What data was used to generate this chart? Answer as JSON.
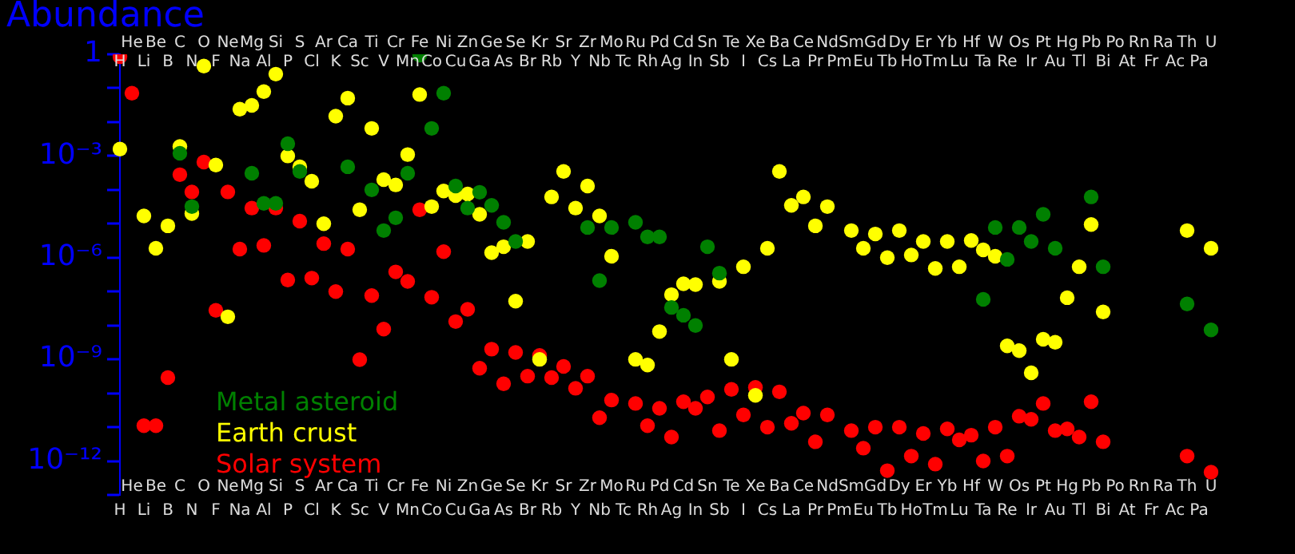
{
  "chart_data": {
    "type": "scatter",
    "title": "Abundance",
    "log": "y",
    "grid": false,
    "legend": "bottom left",
    "marker": "circle",
    "categories": [
      "H",
      "He",
      "Li",
      "Be",
      "B",
      "C",
      "N",
      "O",
      "F",
      "Ne",
      "Na",
      "Mg",
      "Al",
      "Si",
      "P",
      "S",
      "Cl",
      "Ar",
      "K",
      "Ca",
      "Sc",
      "Ti",
      "V",
      "Cr",
      "Mn",
      "Fe",
      "Co",
      "Ni",
      "Cu",
      "Zn",
      "Ga",
      "Ge",
      "As",
      "Se",
      "Br",
      "Kr",
      "Rb",
      "Sr",
      "Y",
      "Zr",
      "Nb",
      "Mo",
      "Tc",
      "Ru",
      "Rh",
      "Pd",
      "Ag",
      "Cd",
      "In",
      "Sn",
      "Sb",
      "Te",
      "I",
      "Xe",
      "Cs",
      "Ba",
      "La",
      "Ce",
      "Pr",
      "Nd",
      "Pm",
      "Sm",
      "Eu",
      "Gd",
      "Tb",
      "Dy",
      "Ho",
      "Er",
      "Tm",
      "Yb",
      "Lu",
      "Hf",
      "Ta",
      "W",
      "Re",
      "Os",
      "Ir",
      "Pt",
      "Au",
      "Hg",
      "Tl",
      "Pb",
      "Bi",
      "Po",
      "At",
      "Rn",
      "Fr",
      "Ra",
      "Ac",
      "Th",
      "Pa",
      "U"
    ],
    "ylim": [
      1e-13,
      1
    ],
    "yticks": [
      1,
      {
        "value": 0.1,
        "label": null
      },
      {
        "value": 0.01,
        "label": null
      },
      {
        "value": 0.001,
        "label": "10⁻³"
      },
      {
        "value": 0.0001,
        "label": null
      },
      {
        "value": 1e-05,
        "label": null
      },
      {
        "value": 1e-06,
        "label": "10⁻⁶"
      },
      {
        "value": 1e-07,
        "label": null
      },
      {
        "value": 1e-08,
        "label": null
      },
      {
        "value": 1e-09,
        "label": "10⁻⁹"
      },
      {
        "value": 1e-10,
        "label": null
      },
      {
        "value": 1e-11,
        "label": null
      },
      {
        "value": 1e-12,
        "label": "10⁻¹²"
      },
      {
        "value": 1e-13,
        "label": null
      }
    ],
    "series": [
      {
        "name": "Metal asteroid",
        "color": "#008000",
        "values": [
          null,
          null,
          null,
          null,
          null,
          0.0012,
          3.2e-05,
          null,
          null,
          null,
          null,
          0.00031,
          4e-05,
          4e-05,
          0.0023,
          0.00035,
          null,
          null,
          null,
          0.00048,
          null,
          0.0001,
          6.3e-06,
          1.5e-05,
          0.00031,
          0.95,
          0.0065,
          0.071,
          0.00013,
          2.9e-05,
          8.5e-05,
          3.5e-05,
          1.1e-05,
          3e-06,
          null,
          null,
          null,
          null,
          null,
          7.8e-06,
          2.1e-07,
          7.8e-06,
          null,
          1.1e-05,
          4.1e-06,
          4.1e-06,
          3.4e-08,
          2e-08,
          1e-08,
          2.1e-06,
          3.5e-07,
          null,
          null,
          null,
          null,
          null,
          null,
          null,
          null,
          null,
          null,
          null,
          null,
          null,
          null,
          null,
          null,
          null,
          null,
          null,
          null,
          null,
          5.9e-08,
          7.8e-06,
          8.9e-07,
          7.8e-06,
          3e-06,
          1.9e-05,
          1.9e-06,
          null,
          null,
          6.2e-05,
          5.4e-07,
          null,
          null,
          null,
          null,
          null,
          null,
          4.3e-08,
          null,
          7.4e-09
        ]
      },
      {
        "name": "Earth crust",
        "color": "#ffff00",
        "values": [
          0.0016,
          null,
          1.7e-05,
          1.9e-06,
          8.7e-06,
          0.0019,
          2e-05,
          0.45,
          0.00054,
          1.8e-08,
          0.024,
          0.031,
          0.079,
          0.26,
          0.001,
          0.00048,
          0.00018,
          1e-05,
          0.015,
          0.051,
          2.6e-05,
          0.0065,
          0.0002,
          0.00014,
          0.0011,
          0.065,
          3.2e-05,
          9.3e-05,
          6.8e-05,
          7.6e-05,
          1.9e-05,
          1.4e-06,
          2.1e-06,
          5.2e-08,
          3e-06,
          1e-09,
          6.2e-05,
          0.00035,
          2.9e-05,
          0.00013,
          1.7e-05,
          1.1e-06,
          null,
          1e-09,
          6.8e-10,
          6.6e-09,
          8.1e-08,
          1.7e-07,
          1.6e-07,
          null,
          2e-07,
          1e-09,
          5.4e-07,
          8.7e-11,
          1.9e-06,
          0.00035,
          3.5e-05,
          6.2e-05,
          8.7e-06,
          3.2e-05,
          null,
          6.3e-06,
          1.9e-06,
          5e-06,
          1e-06,
          6.3e-06,
          1.2e-06,
          3e-06,
          4.8e-07,
          3e-06,
          5.4e-07,
          3.2e-06,
          1.7e-06,
          1.1e-06,
          2.5e-09,
          1.8e-09,
          4e-10,
          3.9e-09,
          3.2e-09,
          6.6e-08,
          5.4e-07,
          9.5e-06,
          2.5e-08,
          null,
          null,
          null,
          null,
          null,
          null,
          6.3e-06,
          null,
          1.9e-06
        ]
      },
      {
        "name": "Solar system",
        "color": "#ff0000",
        "values": [
          0.85,
          0.071,
          1.1e-11,
          1.1e-11,
          2.9e-10,
          0.00028,
          8.7e-05,
          0.00066,
          2.8e-08,
          8.7e-05,
          1.8e-06,
          2.9e-05,
          2.3e-06,
          2.9e-05,
          2.2e-07,
          1.2e-05,
          2.5e-07,
          2.6e-06,
          1e-07,
          1.8e-06,
          9.8e-10,
          7.6e-08,
          7.8e-09,
          3.8e-07,
          2e-07,
          2.6e-05,
          6.8e-08,
          1.5e-06,
          1.3e-08,
          3e-08,
          5.5e-10,
          2e-09,
          1.9e-10,
          1.6e-09,
          3.2e-10,
          1.3e-09,
          2.9e-10,
          6.2e-10,
          1.4e-10,
          3.2e-10,
          1.9e-11,
          6.3e-11,
          null,
          5e-11,
          1.1e-11,
          3.6e-11,
          5.1e-12,
          5.6e-11,
          3.6e-11,
          7.8e-11,
          7.9e-12,
          1.3e-10,
          2.3e-11,
          1.5e-10,
          1e-11,
          1.1e-10,
          1.3e-11,
          2.6e-11,
          3.7e-12,
          2.3e-11,
          null,
          7.9e-12,
          2.4e-12,
          1e-11,
          5.2e-13,
          1e-11,
          1.4e-12,
          6.5e-12,
          8.1e-13,
          8.9e-12,
          4.2e-12,
          5.8e-12,
          1e-12,
          1e-11,
          1.4e-12,
          2.1e-11,
          1.7e-11,
          5e-11,
          7.9e-12,
          8.9e-12,
          5.1e-12,
          5.6e-11,
          3.7e-12,
          null,
          null,
          null,
          null,
          null,
          null,
          1.4e-12,
          null,
          4.7e-13
        ]
      }
    ]
  }
}
